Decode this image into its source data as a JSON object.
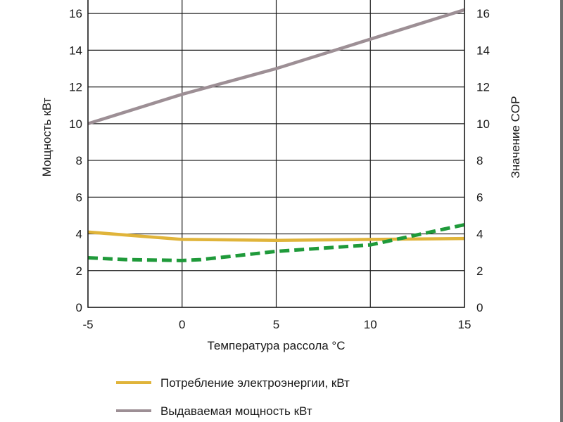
{
  "chart_data": {
    "type": "line",
    "xlabel": "Температура рассола °C",
    "ylabel": "Мощность кВт",
    "y2label": "Значение COP",
    "xlim": [
      -5,
      15
    ],
    "ylim": [
      0,
      17.5
    ],
    "y2lim": [
      0,
      17.5
    ],
    "x_ticks": [
      "-5",
      "0",
      "5",
      "10",
      "15"
    ],
    "y_ticks": [
      "0",
      "2",
      "4",
      "6",
      "8",
      "10",
      "12",
      "14",
      "16"
    ],
    "y2_ticks": [
      "0",
      "2",
      "4",
      "6",
      "8",
      "10",
      "12",
      "14",
      "16"
    ],
    "grid": true,
    "legend_position": "bottom",
    "series": [
      {
        "name": "Потребление электроэнергии, кВт",
        "color": "#e0b43a",
        "style": "solid",
        "axis": "left",
        "x": [
          -5,
          0,
          5,
          10,
          15
        ],
        "y": [
          4.1,
          3.7,
          3.65,
          3.7,
          3.75
        ]
      },
      {
        "name": "Выдаваемая мощность кВт",
        "color": "#9d8f95",
        "style": "solid",
        "axis": "left",
        "x": [
          -5,
          0,
          5,
          10,
          15
        ],
        "y": [
          10.0,
          11.6,
          13.0,
          14.6,
          16.2
        ]
      },
      {
        "color": "#1f9a3a",
        "style": "dashed",
        "axis": "right",
        "x": [
          -5,
          -3,
          0,
          1,
          5,
          10,
          15
        ],
        "y": [
          2.7,
          2.6,
          2.55,
          2.6,
          3.05,
          3.4,
          4.5
        ]
      }
    ]
  }
}
